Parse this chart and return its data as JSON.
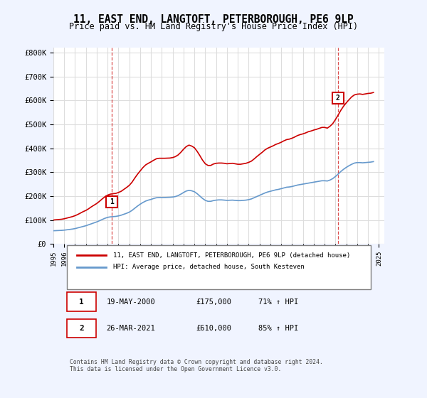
{
  "title": "11, EAST END, LANGTOFT, PETERBOROUGH, PE6 9LP",
  "subtitle": "Price paid vs. HM Land Registry's House Price Index (HPI)",
  "ylabel_ticks": [
    "£0",
    "£100K",
    "£200K",
    "£300K",
    "£400K",
    "£500K",
    "£600K",
    "£700K",
    "£800K"
  ],
  "ytick_values": [
    0,
    100000,
    200000,
    300000,
    400000,
    500000,
    600000,
    700000,
    800000
  ],
  "ylim": [
    0,
    820000
  ],
  "xlim_start": 1995.0,
  "xlim_end": 2025.5,
  "xticks": [
    1995,
    1996,
    1997,
    1998,
    1999,
    2000,
    2001,
    2002,
    2003,
    2004,
    2005,
    2006,
    2007,
    2008,
    2009,
    2010,
    2011,
    2012,
    2013,
    2014,
    2015,
    2016,
    2017,
    2018,
    2019,
    2020,
    2021,
    2022,
    2023,
    2024,
    2025
  ],
  "red_line_color": "#cc0000",
  "blue_line_color": "#6699cc",
  "grid_color": "#dddddd",
  "background_color": "#f0f4ff",
  "plot_bg_color": "#ffffff",
  "sale1_x": 2000.38,
  "sale1_y": 175000,
  "sale1_label": "1",
  "sale1_date": "19-MAY-2000",
  "sale1_price": "£175,000",
  "sale1_hpi": "71% ↑ HPI",
  "sale2_x": 2021.23,
  "sale2_y": 610000,
  "sale2_label": "2",
  "sale2_date": "26-MAR-2021",
  "sale2_price": "£610,000",
  "sale2_hpi": "85% ↑ HPI",
  "legend_line1": "11, EAST END, LANGTOFT, PETERBOROUGH, PE6 9LP (detached house)",
  "legend_line2": "HPI: Average price, detached house, South Kesteven",
  "footer": "Contains HM Land Registry data © Crown copyright and database right 2024.\nThis data is licensed under the Open Government Licence v3.0.",
  "hpi_data_x": [
    1995.0,
    1995.25,
    1995.5,
    1995.75,
    1996.0,
    1996.25,
    1996.5,
    1996.75,
    1997.0,
    1997.25,
    1997.5,
    1997.75,
    1998.0,
    1998.25,
    1998.5,
    1998.75,
    1999.0,
    1999.25,
    1999.5,
    1999.75,
    2000.0,
    2000.25,
    2000.5,
    2000.75,
    2001.0,
    2001.25,
    2001.5,
    2001.75,
    2002.0,
    2002.25,
    2002.5,
    2002.75,
    2003.0,
    2003.25,
    2003.5,
    2003.75,
    2004.0,
    2004.25,
    2004.5,
    2004.75,
    2005.0,
    2005.25,
    2005.5,
    2005.75,
    2006.0,
    2006.25,
    2006.5,
    2006.75,
    2007.0,
    2007.25,
    2007.5,
    2007.75,
    2008.0,
    2008.25,
    2008.5,
    2008.75,
    2009.0,
    2009.25,
    2009.5,
    2009.75,
    2010.0,
    2010.25,
    2010.5,
    2010.75,
    2011.0,
    2011.25,
    2011.5,
    2011.75,
    2012.0,
    2012.25,
    2012.5,
    2012.75,
    2013.0,
    2013.25,
    2013.5,
    2013.75,
    2014.0,
    2014.25,
    2014.5,
    2014.75,
    2015.0,
    2015.25,
    2015.5,
    2015.75,
    2016.0,
    2016.25,
    2016.5,
    2016.75,
    2017.0,
    2017.25,
    2017.5,
    2017.75,
    2018.0,
    2018.25,
    2018.5,
    2018.75,
    2019.0,
    2019.25,
    2019.5,
    2019.75,
    2020.0,
    2020.25,
    2020.5,
    2020.75,
    2021.0,
    2021.25,
    2021.5,
    2021.75,
    2022.0,
    2022.25,
    2022.5,
    2022.75,
    2023.0,
    2023.25,
    2023.5,
    2023.75,
    2024.0,
    2024.25,
    2024.5
  ],
  "hpi_data_y": [
    55000,
    55500,
    56000,
    56500,
    57500,
    59000,
    60500,
    62000,
    64000,
    67000,
    70000,
    73000,
    76000,
    80000,
    84000,
    88000,
    92000,
    97000,
    102000,
    107000,
    111000,
    113000,
    114000,
    115000,
    117000,
    120000,
    124000,
    128000,
    133000,
    140000,
    149000,
    158000,
    166000,
    173000,
    179000,
    183000,
    186000,
    190000,
    193000,
    194000,
    194000,
    194000,
    194500,
    195000,
    196000,
    198000,
    202000,
    208000,
    215000,
    221000,
    224000,
    222000,
    218000,
    210000,
    200000,
    190000,
    182000,
    178000,
    178000,
    181000,
    183000,
    184000,
    184000,
    183000,
    182000,
    182500,
    183000,
    182000,
    181000,
    181000,
    182000,
    183000,
    185000,
    188000,
    193000,
    198000,
    203000,
    208000,
    213000,
    217000,
    220000,
    223000,
    226000,
    228000,
    231000,
    234000,
    237000,
    238000,
    240000,
    243000,
    246000,
    248000,
    250000,
    252000,
    254000,
    256000,
    258000,
    260000,
    262000,
    264000,
    264000,
    263000,
    267000,
    273000,
    282000,
    292000,
    303000,
    312000,
    320000,
    327000,
    333000,
    338000,
    340000,
    340000,
    339000,
    340000,
    341000,
    342000,
    344000
  ],
  "red_data_x": [
    1995.0,
    1995.25,
    1995.5,
    1995.75,
    1996.0,
    1996.25,
    1996.5,
    1996.75,
    1997.0,
    1997.25,
    1997.5,
    1997.75,
    1998.0,
    1998.25,
    1998.5,
    1998.75,
    1999.0,
    1999.25,
    1999.5,
    1999.75,
    2000.0,
    2000.25,
    2000.5,
    2000.75,
    2001.0,
    2001.25,
    2001.5,
    2001.75,
    2002.0,
    2002.25,
    2002.5,
    2002.75,
    2003.0,
    2003.25,
    2003.5,
    2003.75,
    2004.0,
    2004.25,
    2004.5,
    2004.75,
    2005.0,
    2005.25,
    2005.5,
    2005.75,
    2006.0,
    2006.25,
    2006.5,
    2006.75,
    2007.0,
    2007.25,
    2007.5,
    2007.75,
    2008.0,
    2008.25,
    2008.5,
    2008.75,
    2009.0,
    2009.25,
    2009.5,
    2009.75,
    2010.0,
    2010.25,
    2010.5,
    2010.75,
    2011.0,
    2011.25,
    2011.5,
    2011.75,
    2012.0,
    2012.25,
    2012.5,
    2012.75,
    2013.0,
    2013.25,
    2013.5,
    2013.75,
    2014.0,
    2014.25,
    2014.5,
    2014.75,
    2015.0,
    2015.25,
    2015.5,
    2015.75,
    2016.0,
    2016.25,
    2016.5,
    2016.75,
    2017.0,
    2017.25,
    2017.5,
    2017.75,
    2018.0,
    2018.25,
    2018.5,
    2018.75,
    2019.0,
    2019.25,
    2019.5,
    2019.75,
    2020.0,
    2020.25,
    2020.5,
    2020.75,
    2021.0,
    2021.25,
    2021.5,
    2021.75,
    2022.0,
    2022.25,
    2022.5,
    2022.75,
    2023.0,
    2023.25,
    2023.5,
    2023.75,
    2024.0,
    2024.25,
    2024.5
  ],
  "red_data_y": [
    100000,
    101000,
    102000,
    103000,
    105000,
    108000,
    111000,
    114000,
    118000,
    123000,
    129000,
    135000,
    140000,
    147000,
    155000,
    162000,
    169000,
    178000,
    188000,
    197000,
    204000,
    208000,
    210000,
    211000,
    215000,
    220000,
    228000,
    236000,
    245000,
    258000,
    275000,
    291000,
    305000,
    319000,
    330000,
    337000,
    343000,
    350000,
    356000,
    358000,
    358000,
    358000,
    358500,
    359000,
    361000,
    365000,
    372000,
    383000,
    396000,
    407000,
    413000,
    409000,
    402000,
    387000,
    369000,
    350000,
    335000,
    328000,
    328000,
    334000,
    337000,
    338000,
    338000,
    337000,
    335000,
    336000,
    337000,
    335000,
    333000,
    333000,
    335000,
    337000,
    341000,
    346000,
    355000,
    365000,
    374000,
    383000,
    393000,
    400000,
    405000,
    410000,
    416000,
    420000,
    425000,
    431000,
    436000,
    438000,
    442000,
    447000,
    453000,
    457000,
    460000,
    464000,
    469000,
    472000,
    476000,
    479000,
    483000,
    487000,
    487000,
    484000,
    492000,
    503000,
    520000,
    539000,
    559000,
    576000,
    590000,
    603000,
    615000,
    623000,
    626000,
    627000,
    625000,
    627000,
    629000,
    630000,
    633000
  ]
}
